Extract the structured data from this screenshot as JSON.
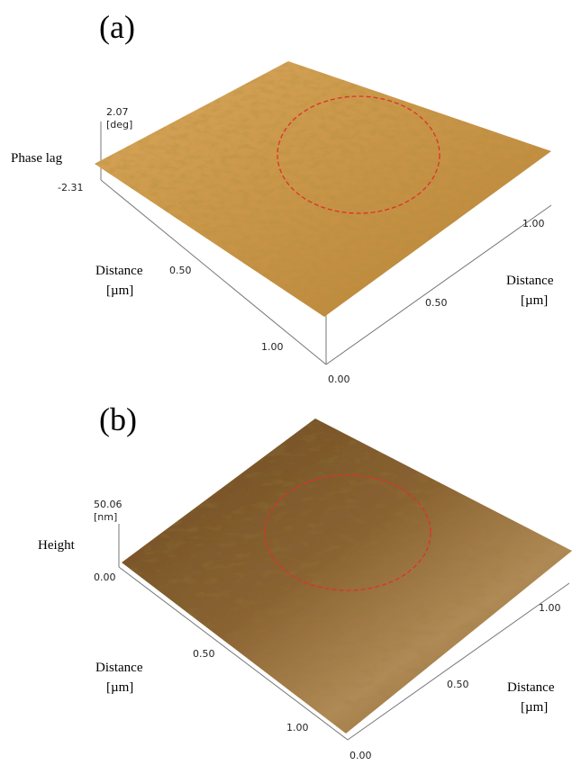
{
  "panels": [
    {
      "label": "(a)",
      "z_axis": {
        "label": "Phase lag",
        "max": "2.07",
        "unit": "[deg]",
        "min": "-2.31"
      },
      "left_axis": {
        "label": "Distance",
        "unit": "[µm]",
        "ticks": [
          "0.50",
          "1.00"
        ]
      },
      "right_axis": {
        "label": "Distance",
        "unit": "[µm]",
        "ticks": [
          "0.00",
          "0.50",
          "1.00"
        ]
      }
    },
    {
      "label": "(b)",
      "z_axis": {
        "label": "Height",
        "max": "50.06",
        "unit": "[nm]",
        "min": "0.00"
      },
      "left_axis": {
        "label": "Distance",
        "unit": "[µm]",
        "ticks": [
          "0.50",
          "1.00"
        ]
      },
      "right_axis": {
        "label": "Distance",
        "unit": "[µm]",
        "ticks": [
          "0.00",
          "0.50",
          "1.00"
        ]
      }
    }
  ]
}
